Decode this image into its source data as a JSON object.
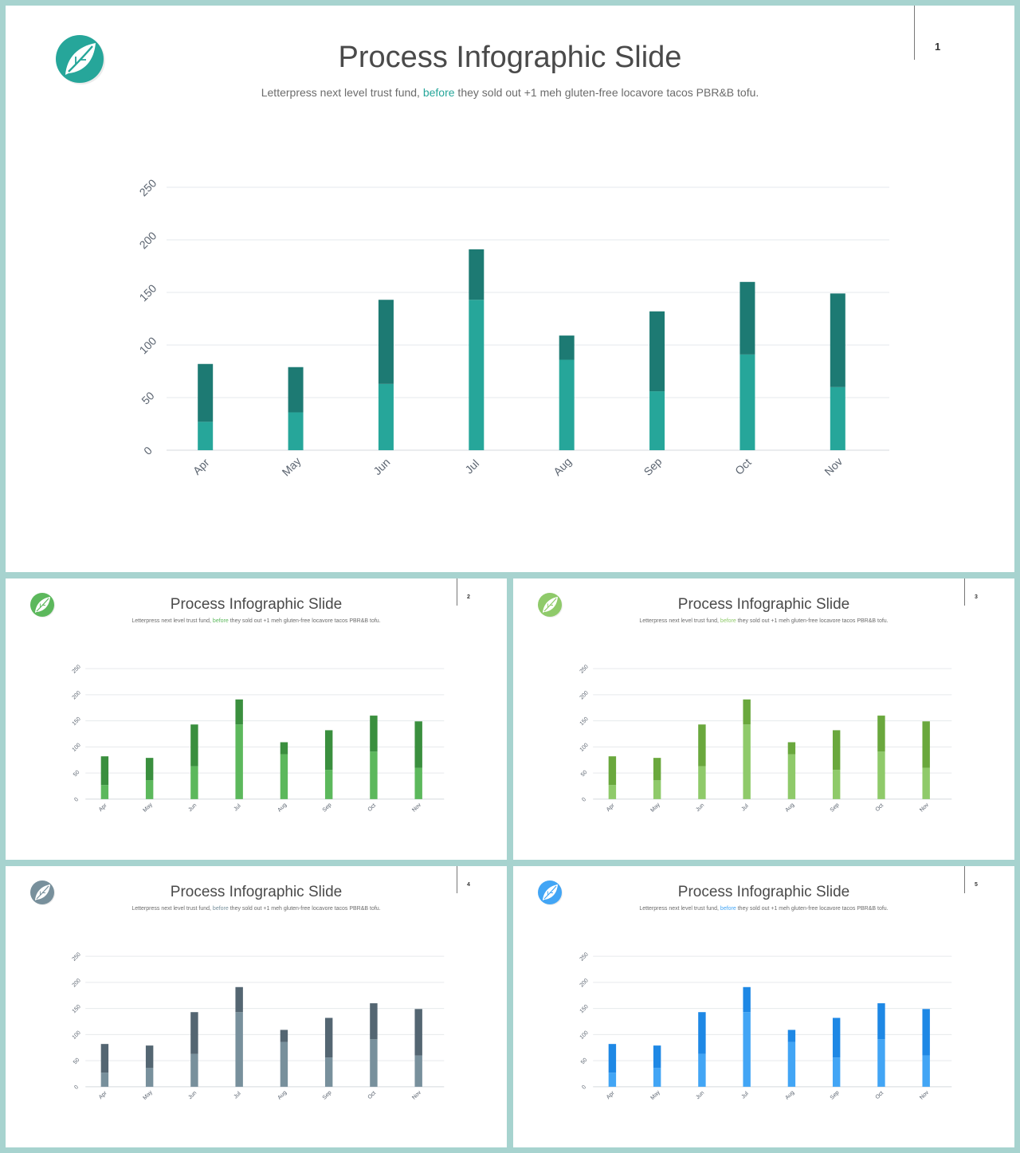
{
  "chart_data": [
    {
      "type": "bar",
      "stacked": true,
      "title": "Process Infographic Slide",
      "categories": [
        "Apr",
        "May",
        "Jun",
        "Jul",
        "Aug",
        "Sep",
        "Oct",
        "Nov"
      ],
      "series": [
        {
          "values": [
            27,
            36,
            63,
            143,
            86,
            56,
            91,
            60
          ]
        },
        {
          "values": [
            55,
            43,
            80,
            48,
            23,
            76,
            69,
            89
          ]
        }
      ],
      "ylim": [
        0,
        250
      ],
      "yticks": [
        "0",
        "50",
        "100",
        "150",
        "200",
        "250"
      ],
      "grid": true
    }
  ],
  "slides": [
    {
      "page_number": "1",
      "title": "Process Infographic Slide",
      "subtitle_before": "Letterpress next level trust fund, ",
      "subtitle_highlight": "before",
      "subtitle_after": " they sold out +1 meh gluten-free locavore tacos PBR&B tofu.",
      "colors": {
        "light": "#26a69a",
        "dark": "#1d7a73",
        "accent": "#26a69a"
      },
      "logo_icon": "leaf-icon"
    },
    {
      "page_number": "2",
      "title": "Process Infographic Slide",
      "subtitle_before": "Letterpress next level trust fund, ",
      "subtitle_highlight": "before",
      "subtitle_after": " they sold out +1 meh gluten-free locavore tacos PBR&B tofu.",
      "colors": {
        "light": "#5cb85c",
        "dark": "#3a8f3e",
        "accent": "#5cb85c"
      },
      "logo_icon": "leaf-icon"
    },
    {
      "page_number": "3",
      "title": "Process Infographic Slide",
      "subtitle_before": "Letterpress next level trust fund, ",
      "subtitle_highlight": "before",
      "subtitle_after": " they sold out +1 meh gluten-free locavore tacos PBR&B tofu.",
      "colors": {
        "light": "#8fca6a",
        "dark": "#6aa83d",
        "accent": "#8fca6a"
      },
      "logo_icon": "leaf-icon"
    },
    {
      "page_number": "4",
      "title": "Process Infographic Slide",
      "subtitle_before": "Letterpress next level trust fund, ",
      "subtitle_highlight": "before",
      "subtitle_after": " they sold out +1 meh gluten-free locavore tacos PBR&B tofu.",
      "colors": {
        "light": "#78909c",
        "dark": "#546672",
        "accent": "#78909c"
      },
      "logo_icon": "leaf-icon"
    },
    {
      "page_number": "5",
      "title": "Process Infographic Slide",
      "subtitle_before": "Letterpress next level trust fund, ",
      "subtitle_highlight": "before",
      "subtitle_after": " they sold out +1 meh gluten-free locavore tacos PBR&B tofu.",
      "colors": {
        "light": "#42a5f5",
        "dark": "#1e88e5",
        "accent": "#42a5f5"
      },
      "logo_icon": "leaf-icon"
    }
  ]
}
